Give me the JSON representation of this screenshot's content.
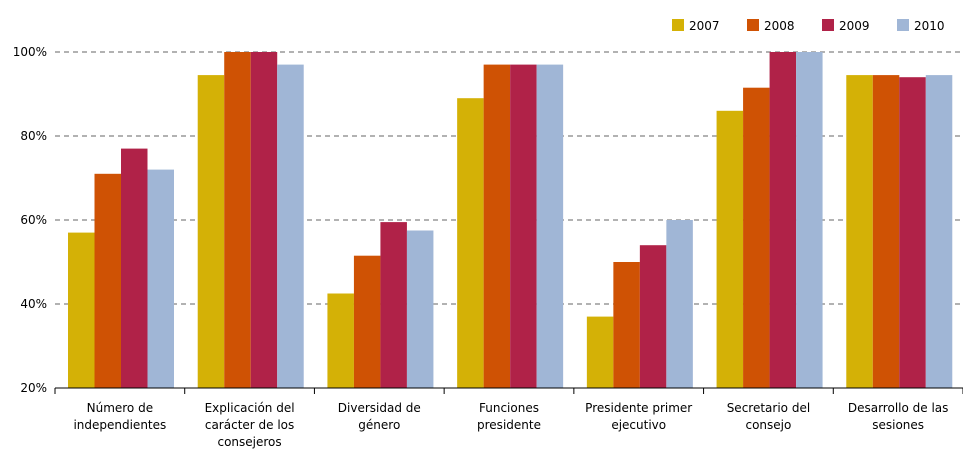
{
  "chart_data": {
    "type": "bar",
    "categories": [
      [
        "Número de",
        "independientes"
      ],
      [
        "Explicación del",
        "carácter de los",
        "consejeros"
      ],
      [
        "Diversidad de",
        "género"
      ],
      [
        "Funciones",
        "presidente"
      ],
      [
        "Presidente primer",
        "ejecutivo"
      ],
      [
        "Secretario del",
        "consejo"
      ],
      [
        "Desarrollo de las",
        "sesiones"
      ]
    ],
    "series": [
      {
        "name": "2007",
        "color": "#d4b106",
        "values": [
          57,
          94.5,
          42.5,
          89,
          37,
          86,
          94.5
        ]
      },
      {
        "name": "2008",
        "color": "#cf5204",
        "values": [
          71,
          100,
          51.5,
          97,
          50,
          91.5,
          94.5
        ]
      },
      {
        "name": "2009",
        "color": "#b02248",
        "values": [
          77,
          100,
          59.5,
          97,
          54,
          100,
          94
        ]
      },
      {
        "name": "2010",
        "color": "#a0b6d6",
        "values": [
          72,
          97,
          57.5,
          97,
          60,
          100,
          94.5
        ]
      }
    ],
    "y_ticks": [
      "20%",
      "40%",
      "60%",
      "80%",
      "100%"
    ],
    "y_tick_values": [
      20,
      40,
      60,
      80,
      100
    ],
    "ylim": [
      20,
      100
    ],
    "grid": "dashed horizontal",
    "legend_position": "top-right"
  }
}
